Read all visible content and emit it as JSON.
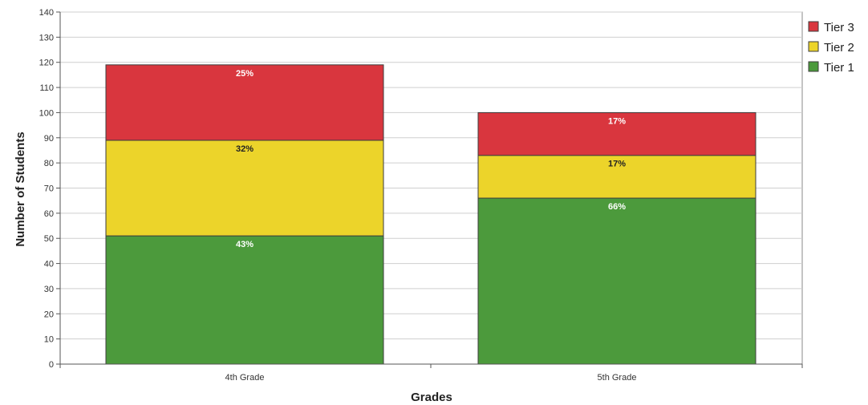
{
  "chart_data": {
    "type": "bar",
    "stacked": true,
    "categories": [
      "4th Grade",
      "5th Grade"
    ],
    "series": [
      {
        "name": "Tier 1",
        "values": [
          51,
          66
        ],
        "labels": [
          "43%",
          "66%"
        ],
        "color": "#4c9a3c"
      },
      {
        "name": "Tier 2",
        "values": [
          38,
          17
        ],
        "labels": [
          "32%",
          "17%"
        ],
        "color": "#ecd42a"
      },
      {
        "name": "Tier 3",
        "values": [
          30,
          17
        ],
        "labels": [
          "25%",
          "17%"
        ],
        "color": "#d9363e"
      }
    ],
    "title": "",
    "xlabel": "Grades",
    "ylabel": "Number of Students",
    "ylim": [
      0,
      140
    ],
    "yticks": [
      0,
      10,
      20,
      30,
      40,
      50,
      60,
      70,
      80,
      90,
      100,
      110,
      120,
      130,
      140
    ],
    "grid": true,
    "legend": {
      "position": "top-right",
      "order": [
        "Tier 3",
        "Tier 2",
        "Tier 1"
      ]
    }
  }
}
